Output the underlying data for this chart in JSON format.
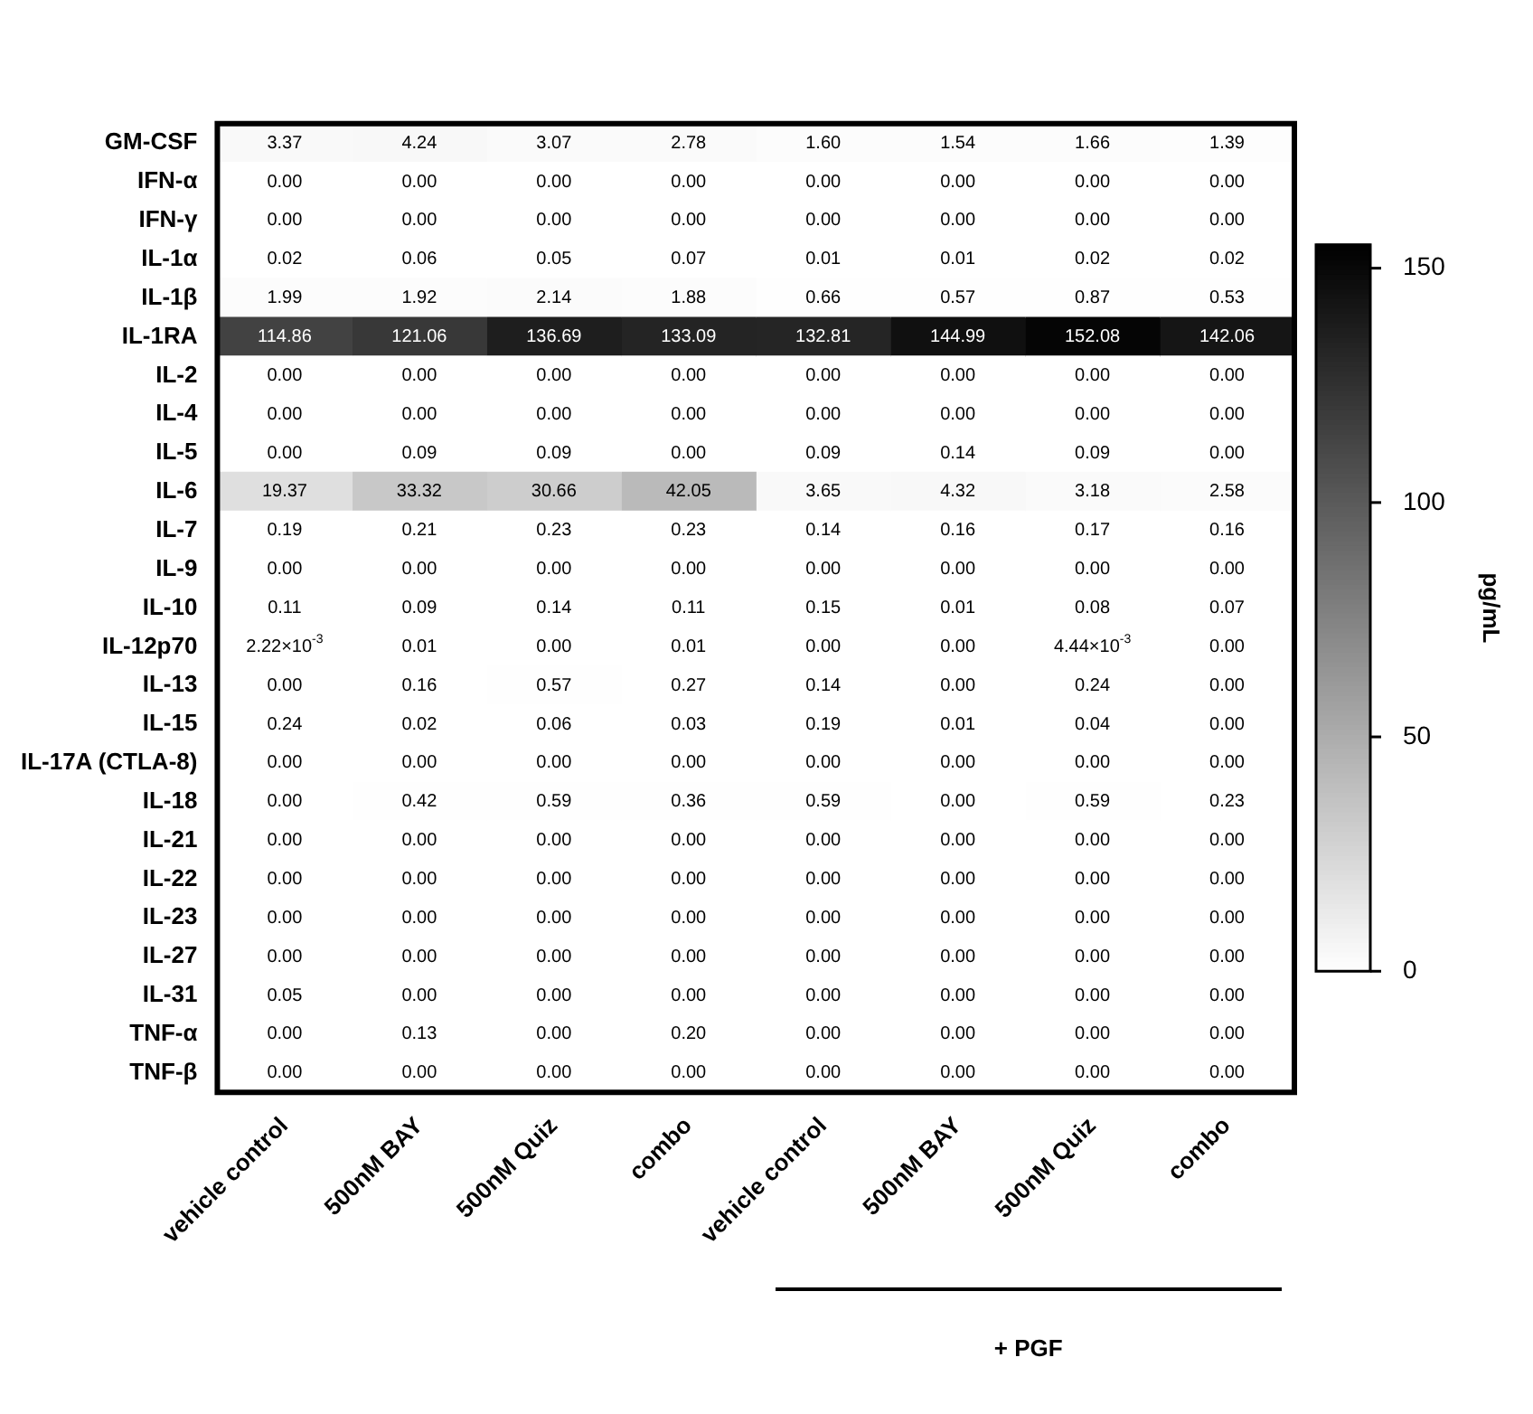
{
  "chart_data": {
    "type": "heatmap",
    "categories": [
      "vehicle control",
      "500nM BAY",
      "500nM Quiz",
      "combo",
      "vehicle control",
      "500nM BAY",
      "500nM Quiz",
      "combo"
    ],
    "y_categories": [
      "GM-CSF",
      "IFN-α",
      "IFN-γ",
      "IL-1α",
      "IL-1β",
      "IL-1RA",
      "IL-2",
      "IL-4",
      "IL-5",
      "IL-6",
      "IL-7",
      "IL-9",
      "IL-10",
      "IL-12p70",
      "IL-13",
      "IL-15",
      "IL-17A (CTLA-8)",
      "IL-18",
      "IL-21",
      "IL-22",
      "IL-23",
      "IL-27",
      "IL-31",
      "TNF-α",
      "TNF-β"
    ],
    "cells": [
      [
        3.37,
        4.24,
        3.07,
        2.78,
        1.6,
        1.54,
        1.66,
        1.39
      ],
      [
        0,
        0,
        0,
        0,
        0,
        0,
        0,
        0
      ],
      [
        0,
        0,
        0,
        0,
        0,
        0,
        0,
        0
      ],
      [
        0.02,
        0.06,
        0.05,
        0.07,
        0.01,
        0.01,
        0.02,
        0.02
      ],
      [
        1.99,
        1.92,
        2.14,
        1.88,
        0.66,
        0.57,
        0.87,
        0.53
      ],
      [
        114.86,
        121.06,
        136.69,
        133.09,
        132.81,
        144.99,
        152.08,
        142.06
      ],
      [
        0,
        0,
        0,
        0,
        0,
        0,
        0,
        0
      ],
      [
        0,
        0,
        0,
        0,
        0,
        0,
        0,
        0
      ],
      [
        0,
        0.09,
        0.09,
        0,
        0.09,
        0.14,
        0.09,
        0
      ],
      [
        19.37,
        33.32,
        30.66,
        42.05,
        3.65,
        4.32,
        3.18,
        2.58
      ],
      [
        0.19,
        0.21,
        0.23,
        0.23,
        0.14,
        0.16,
        0.17,
        0.16
      ],
      [
        0,
        0,
        0,
        0,
        0,
        0,
        0,
        0
      ],
      [
        0.11,
        0.09,
        0.14,
        0.11,
        0.15,
        0.01,
        0.08,
        0.07
      ],
      [
        0.00222,
        0.01,
        0,
        0.01,
        0,
        0,
        0.00444,
        0
      ],
      [
        0,
        0.16,
        0.57,
        0.27,
        0.14,
        0,
        0.24,
        0
      ],
      [
        0.24,
        0.02,
        0.06,
        0.03,
        0.19,
        0.01,
        0.04,
        0
      ],
      [
        0,
        0,
        0,
        0,
        0,
        0,
        0,
        0
      ],
      [
        0,
        0.42,
        0.59,
        0.36,
        0.59,
        0,
        0.59,
        0.23
      ],
      [
        0,
        0,
        0,
        0,
        0,
        0,
        0,
        0
      ],
      [
        0,
        0,
        0,
        0,
        0,
        0,
        0,
        0
      ],
      [
        0,
        0,
        0,
        0,
        0,
        0,
        0,
        0
      ],
      [
        0,
        0,
        0,
        0,
        0,
        0,
        0,
        0
      ],
      [
        0.05,
        0,
        0,
        0,
        0,
        0,
        0,
        0
      ],
      [
        0,
        0.13,
        0,
        0.2,
        0,
        0,
        0,
        0
      ],
      [
        0,
        0,
        0,
        0,
        0,
        0,
        0,
        0
      ]
    ],
    "cell_labels": [
      [
        "3.37",
        "4.24",
        "3.07",
        "2.78",
        "1.60",
        "1.54",
        "1.66",
        "1.39"
      ],
      [
        "0.00",
        "0.00",
        "0.00",
        "0.00",
        "0.00",
        "0.00",
        "0.00",
        "0.00"
      ],
      [
        "0.00",
        "0.00",
        "0.00",
        "0.00",
        "0.00",
        "0.00",
        "0.00",
        "0.00"
      ],
      [
        "0.02",
        "0.06",
        "0.05",
        "0.07",
        "0.01",
        "0.01",
        "0.02",
        "0.02"
      ],
      [
        "1.99",
        "1.92",
        "2.14",
        "1.88",
        "0.66",
        "0.57",
        "0.87",
        "0.53"
      ],
      [
        "114.86",
        "121.06",
        "136.69",
        "133.09",
        "132.81",
        "144.99",
        "152.08",
        "142.06"
      ],
      [
        "0.00",
        "0.00",
        "0.00",
        "0.00",
        "0.00",
        "0.00",
        "0.00",
        "0.00"
      ],
      [
        "0.00",
        "0.00",
        "0.00",
        "0.00",
        "0.00",
        "0.00",
        "0.00",
        "0.00"
      ],
      [
        "0.00",
        "0.09",
        "0.09",
        "0.00",
        "0.09",
        "0.14",
        "0.09",
        "0.00"
      ],
      [
        "19.37",
        "33.32",
        "30.66",
        "42.05",
        "3.65",
        "4.32",
        "3.18",
        "2.58"
      ],
      [
        "0.19",
        "0.21",
        "0.23",
        "0.23",
        "0.14",
        "0.16",
        "0.17",
        "0.16"
      ],
      [
        "0.00",
        "0.00",
        "0.00",
        "0.00",
        "0.00",
        "0.00",
        "0.00",
        "0.00"
      ],
      [
        "0.11",
        "0.09",
        "0.14",
        "0.11",
        "0.15",
        "0.01",
        "0.08",
        "0.07"
      ],
      [
        "2.22×10$^{-3}$",
        "0.01",
        "0.00",
        "0.01",
        "0.00",
        "0.00",
        "4.44×10$^{-3}$",
        "0.00"
      ],
      [
        "0.00",
        "0.16",
        "0.57",
        "0.27",
        "0.14",
        "0.00",
        "0.24",
        "0.00"
      ],
      [
        "0.24",
        "0.02",
        "0.06",
        "0.03",
        "0.19",
        "0.01",
        "0.04",
        "0.00"
      ],
      [
        "0.00",
        "0.00",
        "0.00",
        "0.00",
        "0.00",
        "0.00",
        "0.00",
        "0.00"
      ],
      [
        "0.00",
        "0.42",
        "0.59",
        "0.36",
        "0.59",
        "0.00",
        "0.59",
        "0.23"
      ],
      [
        "0.00",
        "0.00",
        "0.00",
        "0.00",
        "0.00",
        "0.00",
        "0.00",
        "0.00"
      ],
      [
        "0.00",
        "0.00",
        "0.00",
        "0.00",
        "0.00",
        "0.00",
        "0.00",
        "0.00"
      ],
      [
        "0.00",
        "0.00",
        "0.00",
        "0.00",
        "0.00",
        "0.00",
        "0.00",
        "0.00"
      ],
      [
        "0.00",
        "0.00",
        "0.00",
        "0.00",
        "0.00",
        "0.00",
        "0.00",
        "0.00"
      ],
      [
        "0.05",
        "0.00",
        "0.00",
        "0.00",
        "0.00",
        "0.00",
        "0.00",
        "0.00"
      ],
      [
        "0.00",
        "0.13",
        "0.00",
        "0.20",
        "0.00",
        "0.00",
        "0.00",
        "0.00"
      ],
      [
        "0.00",
        "0.00",
        "0.00",
        "0.00",
        "0.00",
        "0.00",
        "0.00",
        "0.00"
      ]
    ],
    "clim": [
      0,
      155
    ],
    "cticks": [
      0,
      50,
      100,
      150
    ],
    "clabel": "pg/mL",
    "annotations": [
      "+ PGF"
    ]
  }
}
